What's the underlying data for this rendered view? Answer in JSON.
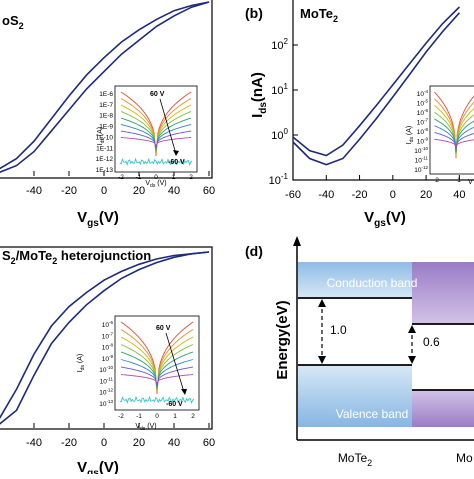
{
  "panels": {
    "a": {
      "title_fragment": "oS",
      "title_sub": "2"
    },
    "b": {
      "label": "(b)",
      "title_main": "MoTe",
      "title_sub": "2",
      "ylabel": "I",
      "ylabel_sub": "ds",
      "ylabel_unit": "(nA)"
    },
    "c": {
      "title_a": "S",
      "title_sub1": "2",
      "title_b": "/MoTe",
      "title_sub2": "2",
      "title_c": " heterojunction"
    },
    "d": {
      "label": "(d)"
    }
  },
  "axis": {
    "vgs_label": "V",
    "vgs_sub": "gs",
    "vgs_unit": "(V)",
    "x_ticks_a": [
      "-40",
      "-20",
      "0",
      "20",
      "40",
      "60"
    ],
    "x_ticks_b": [
      "-60",
      "-40",
      "-20",
      "0",
      "20",
      "40"
    ],
    "y_ticks_b": [
      "10",
      "10",
      "10",
      "10"
    ],
    "y_ticks_b_exp": [
      "-1",
      "0",
      "1",
      "2"
    ]
  },
  "insets": {
    "a": {
      "y_ticks": [
        "1E-6",
        "1E-7",
        "1E-8",
        "1E-9",
        "1E-10",
        "1E-11",
        "1E-12",
        "1E-13"
      ],
      "x_ticks": [
        "-2",
        "-1",
        "0",
        "1",
        "2"
      ],
      "ylabel": "I",
      "ylabel_sub": "ds",
      "ylabel_unit": " (A)",
      "xlabel": "V",
      "xlabel_sub": "ds",
      "xlabel_unit": " (V)",
      "ann_top": "60 V",
      "ann_bottom": "-60 V"
    },
    "b": {
      "y_ticks": [
        "10",
        "10",
        "10",
        "10",
        "10",
        "10",
        "10",
        "10",
        "10"
      ],
      "y_ticks_exp": [
        "-4",
        "-5",
        "-6",
        "-7",
        "-8",
        "-9",
        "-10",
        "-11",
        "-12"
      ],
      "x_ticks": [
        "-2",
        "-1"
      ],
      "ylabel": "I",
      "ylabel_sub": "ds",
      "ylabel_unit": " (A)",
      "xlabel": "V"
    },
    "c": {
      "y_ticks": [
        "10",
        "10",
        "10",
        "10",
        "10",
        "10",
        "10",
        "10"
      ],
      "y_ticks_exp": [
        "-6",
        "-7",
        "-8",
        "-9",
        "-10",
        "-11",
        "-12",
        "-13"
      ],
      "x_ticks": [
        "-2",
        "-1",
        "0",
        "1",
        "2"
      ],
      "ylabel": "I",
      "ylabel_sub": "ds",
      "ylabel_unit": " (A)",
      "xlabel": "V",
      "xlabel_sub": "ds",
      "xlabel_unit": " (V)",
      "ann_top": "60 V",
      "ann_bottom": "-60 V"
    }
  },
  "axis_c": {
    "x_ticks": [
      "-40",
      "-20",
      "0",
      "20",
      "40",
      "60"
    ]
  },
  "band_diagram": {
    "ylabel": "Energy(eV)",
    "conduction_label": "Conduction band",
    "valence_label": "Valence band",
    "gap_left": "1.0",
    "gap_right": "0.6",
    "material_left": "MoTe",
    "material_left_sub": "2",
    "material_right": "Mo",
    "colors": {
      "mote2_band": "#a9cbe9",
      "right_band": "#b59bd1",
      "mote2_deep": "#7fb0df"
    }
  },
  "colors": {
    "transfer_curve": "#1f2a7a",
    "inset_cyan": "#35c6c6"
  },
  "chart_data": [
    {
      "type": "line",
      "panel": "a",
      "xlabel": "Vgs(V)",
      "ylim_note": "log scale, values not labeled",
      "series": [
        {
          "x": [
            -60,
            -50,
            -40,
            -30,
            -20,
            -10,
            0,
            10,
            20,
            30,
            40,
            50,
            60
          ],
          "y_rel": [
            0.02,
            0.06,
            0.14,
            0.26,
            0.38,
            0.5,
            0.6,
            0.7,
            0.78,
            0.86,
            0.92,
            0.97,
            1.0
          ]
        },
        {
          "x": [
            -60,
            -50,
            -40,
            -30,
            -20,
            -10,
            0,
            10,
            20,
            30,
            40,
            50,
            60
          ],
          "y_rel": [
            0.04,
            0.1,
            0.2,
            0.33,
            0.46,
            0.58,
            0.68,
            0.77,
            0.84,
            0.9,
            0.95,
            0.98,
            1.0
          ]
        }
      ]
    },
    {
      "type": "line",
      "panel": "b",
      "xlabel": "Vgs(V)",
      "ylabel": "Ids(nA)",
      "yscale": "log",
      "ylim": [
        0.1,
        1000
      ],
      "series": [
        {
          "x": [
            -60,
            -50,
            -40,
            -30,
            -20,
            -10,
            0,
            10,
            20,
            30,
            40
          ],
          "y": [
            0.9,
            0.45,
            0.35,
            0.6,
            1.6,
            4.5,
            13,
            38,
            110,
            300,
            700
          ]
        },
        {
          "x": [
            -60,
            -50,
            -40,
            -30,
            -20,
            -10,
            0,
            10,
            20,
            30,
            40
          ],
          "y": [
            0.7,
            0.3,
            0.22,
            0.3,
            0.8,
            2.3,
            7,
            22,
            70,
            200,
            520
          ]
        }
      ]
    },
    {
      "type": "line",
      "panel": "c",
      "xlabel": "Vgs(V)",
      "series": [
        {
          "x": [
            -60,
            -50,
            -40,
            -30,
            -20,
            -10,
            0,
            10,
            20,
            30,
            40,
            50,
            60
          ],
          "y_rel": [
            0.02,
            0.1,
            0.3,
            0.48,
            0.6,
            0.7,
            0.78,
            0.85,
            0.9,
            0.94,
            0.97,
            0.99,
            1.0
          ]
        },
        {
          "x": [
            -60,
            -50,
            -40,
            -30,
            -20,
            -10,
            0,
            10,
            20,
            30,
            40,
            50,
            60
          ],
          "y_rel": [
            0.05,
            0.22,
            0.42,
            0.58,
            0.69,
            0.77,
            0.84,
            0.89,
            0.93,
            0.96,
            0.98,
            0.99,
            1.0
          ]
        }
      ]
    }
  ]
}
